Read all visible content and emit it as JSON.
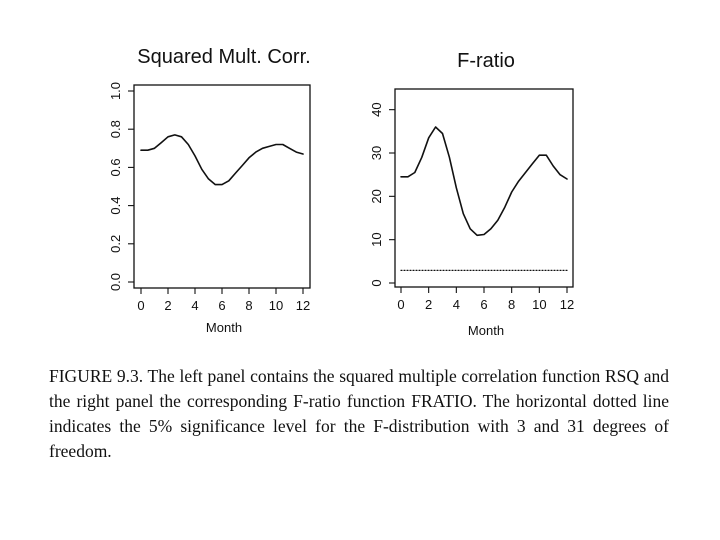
{
  "chart_data": [
    {
      "type": "line",
      "title": "Squared Mult. Corr.",
      "xlabel": "Month",
      "ylabel": "",
      "xlim": [
        0,
        12
      ],
      "ylim": [
        0,
        1.0
      ],
      "xticks": [
        "0",
        "2",
        "4",
        "6",
        "8",
        "10",
        "12"
      ],
      "yticks": [
        "0.0",
        "0.2",
        "0.4",
        "0.6",
        "0.8",
        "1.0"
      ],
      "grid": false,
      "series": [
        {
          "x": [
            0,
            0.5,
            1,
            1.5,
            2,
            2.5,
            3,
            3.5,
            4,
            4.5,
            5,
            5.5,
            6,
            6.5,
            7,
            7.5,
            8,
            8.5,
            9,
            9.5,
            10,
            10.5,
            11,
            11.5,
            12
          ],
          "values": [
            0.69,
            0.69,
            0.7,
            0.73,
            0.76,
            0.77,
            0.76,
            0.72,
            0.66,
            0.59,
            0.54,
            0.51,
            0.51,
            0.53,
            0.57,
            0.61,
            0.65,
            0.68,
            0.7,
            0.71,
            0.72,
            0.72,
            0.7,
            0.68,
            0.67
          ],
          "style": "solid"
        }
      ]
    },
    {
      "type": "line",
      "title": "F-ratio",
      "xlabel": "Month",
      "ylabel": "",
      "xlim": [
        0,
        12
      ],
      "ylim": [
        0,
        42
      ],
      "xticks": [
        "0",
        "2",
        "4",
        "6",
        "8",
        "10",
        "12"
      ],
      "yticks": [
        "0",
        "10",
        "20",
        "30",
        "40"
      ],
      "grid": false,
      "series": [
        {
          "x": [
            0,
            0.5,
            1,
            1.5,
            2,
            2.5,
            3,
            3.5,
            4,
            4.5,
            5,
            5.5,
            6,
            6.5,
            7,
            7.5,
            8,
            8.5,
            9,
            9.5,
            10,
            10.5,
            11,
            11.5,
            12
          ],
          "values": [
            24.5,
            24.5,
            25.5,
            29,
            33.5,
            36,
            34.5,
            29,
            22,
            16,
            12.5,
            11,
            11.2,
            12.5,
            14.5,
            17.5,
            21,
            23.5,
            25.5,
            27.5,
            29.5,
            29.5,
            27,
            25,
            24
          ],
          "style": "solid"
        },
        {
          "x": [
            0,
            12
          ],
          "values": [
            2.9,
            2.9
          ],
          "style": "dotted"
        }
      ]
    }
  ],
  "caption": "FIGURE 9.3. The left panel contains the squared multiple correlation function RSQ and the right panel the corresponding F-ratio function FRATIO. The horizontal dotted line indicates the 5% significance level for the F-distribution with 3 and 31 degrees of freedom."
}
